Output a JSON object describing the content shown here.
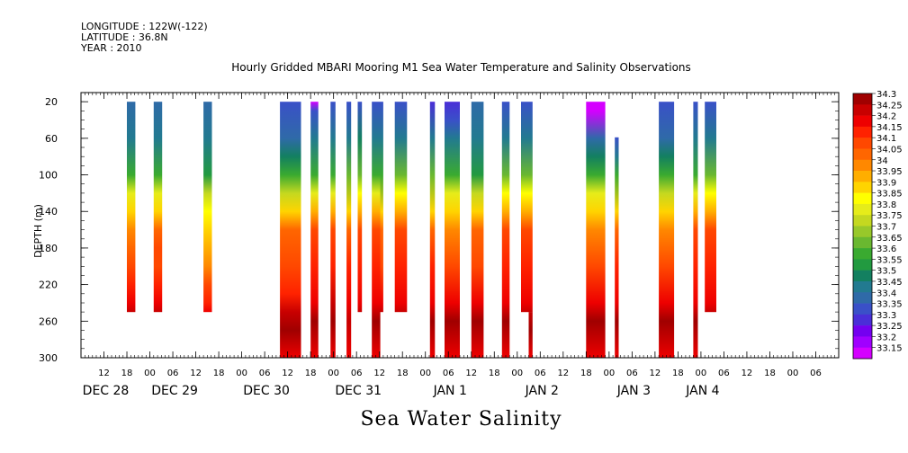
{
  "header": {
    "longitude": "LONGITUDE : 122W(-122)",
    "latitude": "LATITUDE : 36.8N",
    "year": "YEAR : 2010",
    "title": "Hourly Gridded MBARI Mooring M1 Sea Water Temperature and Salinity Observations"
  },
  "chart_data": {
    "type": "heatmap",
    "title": "Hourly Gridded MBARI Mooring M1 Sea Water Temperature and Salinity Observations",
    "xlabel": "Sea Water Salinity",
    "ylabel": "DEPTH (m)",
    "x_axis": {
      "units": "hours since 2010-12-27 12:00",
      "range": [
        -6,
        192
      ],
      "hour_ticks": [
        {
          "h": 0,
          "label": "12"
        },
        {
          "h": 6,
          "label": "18"
        },
        {
          "h": 12,
          "label": "00"
        },
        {
          "h": 18,
          "label": "06"
        },
        {
          "h": 24,
          "label": "12"
        },
        {
          "h": 30,
          "label": "18"
        },
        {
          "h": 36,
          "label": "00"
        },
        {
          "h": 42,
          "label": "06"
        },
        {
          "h": 48,
          "label": "12"
        },
        {
          "h": 54,
          "label": "18"
        },
        {
          "h": 60,
          "label": "00"
        },
        {
          "h": 66,
          "label": "06"
        },
        {
          "h": 72,
          "label": "12"
        },
        {
          "h": 78,
          "label": "18"
        },
        {
          "h": 84,
          "label": "00"
        },
        {
          "h": 90,
          "label": "06"
        },
        {
          "h": 96,
          "label": "12"
        },
        {
          "h": 102,
          "label": "18"
        },
        {
          "h": 108,
          "label": "00"
        },
        {
          "h": 114,
          "label": "06"
        },
        {
          "h": 120,
          "label": "12"
        },
        {
          "h": 126,
          "label": "18"
        },
        {
          "h": 132,
          "label": "00"
        },
        {
          "h": 138,
          "label": "06"
        },
        {
          "h": 144,
          "label": "12"
        },
        {
          "h": 150,
          "label": "18"
        },
        {
          "h": 156,
          "label": "00"
        },
        {
          "h": 162,
          "label": "06"
        },
        {
          "h": 168,
          "label": "12"
        },
        {
          "h": 174,
          "label": "18"
        },
        {
          "h": 180,
          "label": "00"
        },
        {
          "h": 186,
          "label": "06"
        }
      ],
      "day_labels": [
        {
          "h": 0,
          "label": "DEC 28"
        },
        {
          "h": 18,
          "label": "DEC 29"
        },
        {
          "h": 42,
          "label": "DEC 30"
        },
        {
          "h": 66,
          "label": "DEC 31"
        },
        {
          "h": 90,
          "label": "JAN  1"
        },
        {
          "h": 114,
          "label": "JAN  2"
        },
        {
          "h": 138,
          "label": "JAN  3"
        },
        {
          "h": 156,
          "label": "JAN  4"
        }
      ]
    },
    "y_axis": {
      "range": [
        10,
        300
      ],
      "reversed": true,
      "ticks": [
        20,
        60,
        100,
        140,
        180,
        220,
        260,
        300
      ]
    },
    "levels": [
      "33.15",
      "33.2",
      "33.25",
      "33.3",
      "33.35",
      "33.4",
      "33.45",
      "33.5",
      "33.55",
      "33.6",
      "33.65",
      "33.7",
      "33.75",
      "33.8",
      "33.85",
      "33.9",
      "33.95",
      "34",
      "34.05",
      "34.1",
      "34.15",
      "34.2",
      "34.25",
      "34.3"
    ],
    "level_colors": [
      "#d400ff",
      "#a000ff",
      "#7400f0",
      "#4a2ed8",
      "#3a50c8",
      "#2f6aa8",
      "#227a90",
      "#138060",
      "#229a40",
      "#3aaa30",
      "#6ab830",
      "#98c82a",
      "#c4d820",
      "#e6ec1a",
      "#ffff00",
      "#ffd400",
      "#ffae00",
      "#ff8800",
      "#ff6600",
      "#ff4800",
      "#ff2200",
      "#ee0000",
      "#c80000",
      "#a00000"
    ],
    "profiles": [
      {
        "start": 6.0,
        "end": 8.2,
        "top": 20,
        "bottom": 250,
        "depths": [
          20,
          60,
          100,
          120,
          140,
          160,
          180,
          200,
          220,
          240,
          250
        ],
        "values": [
          33.4,
          33.45,
          33.6,
          33.8,
          33.9,
          34.0,
          34.05,
          34.1,
          34.15,
          34.2,
          34.25
        ]
      },
      {
        "start": 13.0,
        "end": 15.2,
        "top": 20,
        "bottom": 250,
        "depths": [
          20,
          60,
          100,
          120,
          140,
          160,
          180,
          200,
          220,
          240,
          250
        ],
        "values": [
          33.4,
          33.45,
          33.6,
          33.8,
          33.9,
          34.05,
          34.1,
          34.1,
          34.15,
          34.2,
          34.25
        ]
      },
      {
        "start": 26.0,
        "end": 28.2,
        "top": 20,
        "bottom": 250,
        "depths": [
          20,
          60,
          100,
          120,
          140,
          160,
          180,
          200,
          220,
          240,
          250
        ],
        "values": [
          33.4,
          33.45,
          33.55,
          33.75,
          33.85,
          33.9,
          33.95,
          34.0,
          34.1,
          34.15,
          34.2
        ]
      },
      {
        "start": 46.0,
        "end": 51.5,
        "top": 20,
        "bottom": 300,
        "depths": [
          20,
          60,
          80,
          100,
          120,
          140,
          160,
          200,
          230,
          250,
          270,
          300
        ],
        "values": [
          33.35,
          33.4,
          33.5,
          33.6,
          33.75,
          33.9,
          34.05,
          34.1,
          34.15,
          34.25,
          34.3,
          34.2
        ]
      },
      {
        "start": 54.0,
        "end": 56.0,
        "top": 20,
        "bottom": 300,
        "depths": [
          20,
          30,
          60,
          100,
          120,
          140,
          160,
          200,
          240,
          260,
          300
        ],
        "values": [
          33.15,
          33.35,
          33.45,
          33.6,
          33.8,
          33.95,
          34.1,
          34.15,
          34.2,
          34.3,
          34.2
        ]
      },
      {
        "start": 59.2,
        "end": 60.5,
        "top": 20,
        "bottom": 300,
        "depths": [
          20,
          60,
          100,
          120,
          140,
          160,
          200,
          240,
          260,
          300
        ],
        "values": [
          33.35,
          33.45,
          33.6,
          33.8,
          33.95,
          34.1,
          34.15,
          34.25,
          34.3,
          34.2
        ]
      },
      {
        "start": 63.4,
        "end": 64.6,
        "top": 20,
        "bottom": 300,
        "depths": [
          20,
          60,
          100,
          140,
          160,
          200,
          240,
          260,
          300
        ],
        "values": [
          33.35,
          33.45,
          33.65,
          33.9,
          34.05,
          34.15,
          34.2,
          34.25,
          34.2
        ]
      },
      {
        "start": 66.3,
        "end": 67.4,
        "top": 20,
        "bottom": 250,
        "depths": [
          20,
          60,
          100,
          120,
          140,
          160,
          200,
          240,
          250
        ],
        "values": [
          33.35,
          33.5,
          33.65,
          33.85,
          33.95,
          34.1,
          34.15,
          34.2,
          34.25
        ]
      },
      {
        "start": 70.0,
        "end": 72.2,
        "top": 20,
        "bottom": 300,
        "depths": [
          20,
          60,
          100,
          120,
          140,
          160,
          200,
          240,
          260,
          300
        ],
        "values": [
          33.35,
          33.45,
          33.6,
          33.8,
          33.95,
          34.1,
          34.15,
          34.2,
          34.3,
          34.2
        ]
      },
      {
        "start": 72.2,
        "end": 73.0,
        "top": 20,
        "bottom": 250,
        "depths": [
          20,
          60,
          100,
          140,
          160,
          200,
          240,
          250
        ],
        "values": [
          33.35,
          33.45,
          33.6,
          33.9,
          34.05,
          34.1,
          34.2,
          34.25
        ]
      },
      {
        "start": 76.0,
        "end": 79.2,
        "top": 20,
        "bottom": 250,
        "depths": [
          20,
          60,
          100,
          120,
          140,
          160,
          200,
          240,
          250
        ],
        "values": [
          33.35,
          33.45,
          33.65,
          33.85,
          33.95,
          34.1,
          34.15,
          34.2,
          34.25
        ]
      },
      {
        "start": 85.2,
        "end": 86.5,
        "top": 20,
        "bottom": 300,
        "depths": [
          20,
          60,
          100,
          140,
          160,
          200,
          240,
          260,
          300
        ],
        "values": [
          33.3,
          33.45,
          33.65,
          33.9,
          34.05,
          34.15,
          34.2,
          34.3,
          34.2
        ]
      },
      {
        "start": 89.0,
        "end": 93.0,
        "top": 20,
        "bottom": 300,
        "depths": [
          20,
          40,
          60,
          100,
          120,
          140,
          160,
          200,
          240,
          260,
          300
        ],
        "values": [
          33.3,
          33.35,
          33.45,
          33.6,
          33.8,
          33.9,
          34.0,
          34.1,
          34.2,
          34.3,
          34.2
        ]
      },
      {
        "start": 96.0,
        "end": 99.2,
        "top": 20,
        "bottom": 300,
        "depths": [
          20,
          60,
          100,
          120,
          140,
          160,
          200,
          240,
          260,
          300
        ],
        "values": [
          33.4,
          33.45,
          33.55,
          33.75,
          33.9,
          34.05,
          34.1,
          34.2,
          34.3,
          34.2
        ]
      },
      {
        "start": 104.0,
        "end": 106.0,
        "top": 20,
        "bottom": 300,
        "depths": [
          20,
          60,
          100,
          120,
          140,
          160,
          200,
          240,
          260,
          300
        ],
        "values": [
          33.35,
          33.45,
          33.65,
          33.85,
          33.95,
          34.1,
          34.15,
          34.2,
          34.3,
          34.2
        ]
      },
      {
        "start": 109.0,
        "end": 112.0,
        "top": 20,
        "bottom": 250,
        "depths": [
          20,
          60,
          100,
          120,
          140,
          160,
          200,
          240,
          250
        ],
        "values": [
          33.35,
          33.45,
          33.65,
          33.85,
          33.95,
          34.1,
          34.15,
          34.2,
          34.25
        ]
      },
      {
        "start": 111.0,
        "end": 112.0,
        "top": 250,
        "bottom": 300,
        "depths": [
          250,
          270,
          300
        ],
        "values": [
          34.25,
          34.3,
          34.2
        ]
      },
      {
        "start": 126.0,
        "end": 131.0,
        "top": 20,
        "bottom": 300,
        "depths": [
          20,
          30,
          60,
          80,
          100,
          120,
          140,
          160,
          200,
          240,
          260,
          300
        ],
        "values": [
          33.15,
          33.15,
          33.4,
          33.5,
          33.6,
          33.8,
          33.9,
          34.0,
          34.1,
          34.2,
          34.3,
          34.2
        ]
      },
      {
        "start": 133.5,
        "end": 134.5,
        "top": 59,
        "bottom": 300,
        "depths": [
          59,
          80,
          100,
          140,
          160,
          200,
          240,
          260,
          300
        ],
        "values": [
          33.35,
          33.45,
          33.6,
          33.9,
          34.05,
          34.15,
          34.2,
          34.3,
          34.2
        ]
      },
      {
        "start": 145.0,
        "end": 149.0,
        "top": 20,
        "bottom": 300,
        "depths": [
          20,
          60,
          80,
          100,
          120,
          140,
          160,
          200,
          240,
          260,
          300
        ],
        "values": [
          33.35,
          33.4,
          33.5,
          33.6,
          33.75,
          33.9,
          34.0,
          34.1,
          34.2,
          34.3,
          34.2
        ]
      },
      {
        "start": 154.0,
        "end": 155.2,
        "top": 20,
        "bottom": 300,
        "depths": [
          20,
          60,
          100,
          120,
          140,
          160,
          200,
          240,
          260,
          300
        ],
        "values": [
          33.35,
          33.45,
          33.6,
          33.8,
          33.95,
          34.1,
          34.15,
          34.2,
          34.3,
          34.2
        ]
      },
      {
        "start": 157.0,
        "end": 160.0,
        "top": 20,
        "bottom": 250,
        "depths": [
          20,
          60,
          100,
          120,
          140,
          160,
          200,
          240,
          250
        ],
        "values": [
          33.35,
          33.45,
          33.65,
          33.85,
          33.95,
          34.1,
          34.15,
          34.2,
          34.25
        ]
      }
    ]
  }
}
